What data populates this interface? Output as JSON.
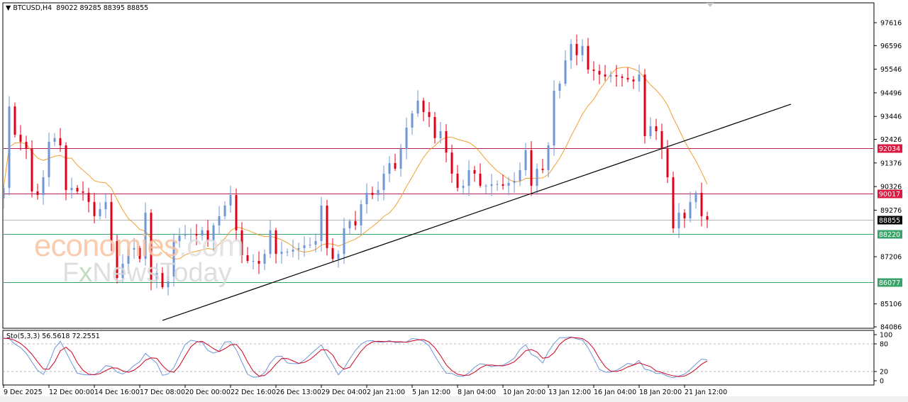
{
  "header": {
    "symbol": "BTCUSD,H4",
    "ohlc": "89022 89285 88395 88855",
    "menu_icon": "triangle-down-icon"
  },
  "stochastic": {
    "label": "Sto(5,3,3)",
    "main": "56.5618",
    "signal": "72.2551",
    "levels": [
      80,
      20
    ],
    "axis_ticks": [
      "100",
      "80",
      "20",
      "0"
    ]
  },
  "watermark": {
    "brand1_main": "economies",
    "brand1_suffix": ".com",
    "brand2_a": "F",
    "brand2_x": "x",
    "brand2_rest": "NewsToday"
  },
  "colors": {
    "bull": "#6e96d8",
    "bear": "#e0001a",
    "ma": "#f0a030",
    "resistance": "#b0205a",
    "support": "#3aa36a",
    "current": "#b8b8b8",
    "trendline": "#000000",
    "sto_main": "#6e96d8",
    "sto_signal": "#d00020"
  },
  "chart_data": {
    "type": "candlestick",
    "symbol": "BTCUSD",
    "timeframe": "H4",
    "y_ticks": [
      "97616",
      "96596",
      "95546",
      "94496",
      "93446",
      "92426",
      "91376",
      "90326",
      "89276",
      "87206",
      "85106",
      "84086"
    ],
    "ylim": [
      84086,
      97616
    ],
    "x_ticks": [
      "9 Dec 2025",
      "12 Dec 00:00",
      "14 Dec 16:00",
      "17 Dec 08:00",
      "20 Dec 00:00",
      "22 Dec 16:00",
      "26 Dec 13:00",
      "29 Dec 04:00",
      "2 Jan 21:00",
      "5 Jan 12:00",
      "8 Jan 04:00",
      "10 Jan 20:00",
      "13 Jan 12:00",
      "16 Jan 04:00",
      "18 Jan 20:00",
      "21 Jan 12:00"
    ],
    "first_open": 89800,
    "closes": [
      90270,
      93890,
      92630,
      92320,
      92000,
      90110,
      89950,
      90740,
      92320,
      92480,
      92160,
      90170,
      90270,
      90110,
      90050,
      89640,
      89010,
      89320,
      89640,
      87900,
      86260,
      86890,
      87520,
      87590,
      87110,
      89160,
      86170,
      86480,
      85850,
      86330,
      87900,
      88150,
      88220,
      88220,
      88150,
      88380,
      87900,
      88600,
      89010,
      89480,
      89950,
      88380,
      87270,
      87020,
      87020,
      86890,
      87330,
      88380,
      87330,
      87430,
      87430,
      87520,
      87590,
      87710,
      87740,
      87900,
      89480,
      87590,
      87110,
      87330,
      88470,
      88790,
      88600,
      89540,
      90050,
      89950,
      90170,
      90900,
      91370,
      91120,
      92000,
      92950,
      93580,
      94150,
      93640,
      93420,
      92480,
      92790,
      91840,
      90900,
      90270,
      90360,
      91060,
      90900,
      90360,
      90360,
      90430,
      90430,
      90360,
      90490,
      90580,
      91060,
      91940,
      90360,
      91120,
      91060,
      92160,
      94590,
      94900,
      95940,
      96670,
      96170,
      96580,
      95530,
      95470,
      95310,
      95220,
      95280,
      95220,
      95160,
      95090,
      95000,
      95310,
      92570,
      93010,
      92790,
      92000,
      90740,
      88470,
      89160,
      88910,
      89640,
      90050,
      89010,
      88855
    ],
    "horizontal_lines": [
      {
        "price": "92034",
        "kind": "resistance"
      },
      {
        "price": "90017",
        "kind": "resistance"
      },
      {
        "price": "88855",
        "kind": "current"
      },
      {
        "price": "88220",
        "kind": "support"
      },
      {
        "price": "86077",
        "kind": "support"
      }
    ],
    "trendline": {
      "start": {
        "time": "17 Dec 08:00",
        "price": 84370
      },
      "end_price": 93990
    },
    "moving_average": {
      "type": "SMA",
      "color": "orange"
    },
    "indicator": "Stochastic(5,3,3)"
  }
}
